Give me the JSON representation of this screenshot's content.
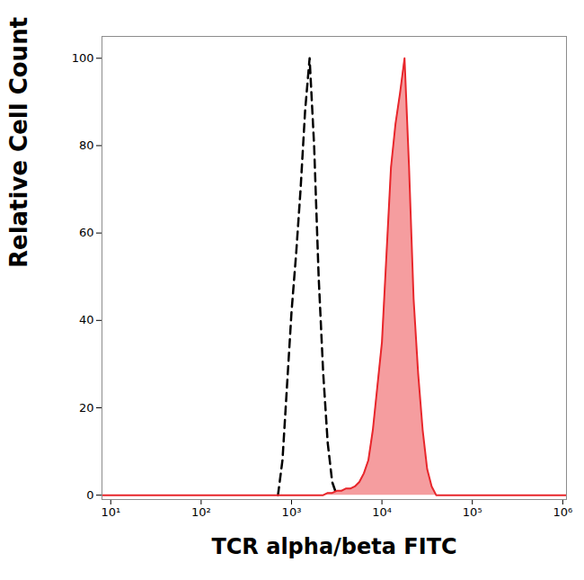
{
  "chart_data": {
    "type": "line",
    "xlabel": "TCR alpha/beta FITC",
    "ylabel": "Relative Cell Count",
    "log": "x",
    "grid": false,
    "xlim": [
      8,
      1100000
    ],
    "ylim": [
      -1,
      105
    ],
    "xticks": [
      {
        "value": 10,
        "label": "10¹"
      },
      {
        "value": 100,
        "label": "10²"
      },
      {
        "value": 1000,
        "label": "10³"
      },
      {
        "value": 10000,
        "label": "10⁴"
      },
      {
        "value": 100000,
        "label": "10⁵"
      },
      {
        "value": 1000000,
        "label": "10⁶"
      }
    ],
    "yticks": [
      0,
      20,
      40,
      60,
      80,
      100
    ],
    "x": [
      8,
      631,
      708,
      794,
      891,
      1000,
      1122,
      1259,
      1413,
      1585,
      1778,
      1995,
      2239,
      2512,
      2818,
      3162,
      3548,
      3981,
      4467,
      5012,
      5623,
      6310,
      7079,
      7943,
      8913,
      10000,
      11220,
      12589,
      14125,
      15849,
      17783,
      19953,
      22387,
      25119,
      28184,
      31623,
      35481,
      39811,
      1100000
    ],
    "series": [
      {
        "type": "line",
        "color": "#000000",
        "line_style": "dashed",
        "values": [
          null,
          null,
          0,
          8,
          25,
          42,
          55,
          70,
          88,
          100,
          80,
          50,
          28,
          12,
          3,
          0,
          null,
          null,
          null,
          null,
          null,
          null,
          null,
          null,
          null,
          null,
          null,
          null,
          null,
          null,
          null,
          null,
          null,
          null,
          null,
          null,
          null,
          null,
          null
        ]
      },
      {
        "type": "area",
        "color": "#e8262b",
        "line_style": "solid",
        "values": [
          0,
          0,
          0,
          0,
          0,
          0,
          0,
          0,
          0,
          0,
          0,
          0,
          0,
          0.5,
          0.5,
          1,
          1,
          1.5,
          1.5,
          2,
          3,
          5,
          8,
          15,
          25,
          35,
          55,
          75,
          85,
          92,
          100,
          75,
          45,
          28,
          15,
          6,
          2,
          0,
          0
        ]
      }
    ]
  }
}
